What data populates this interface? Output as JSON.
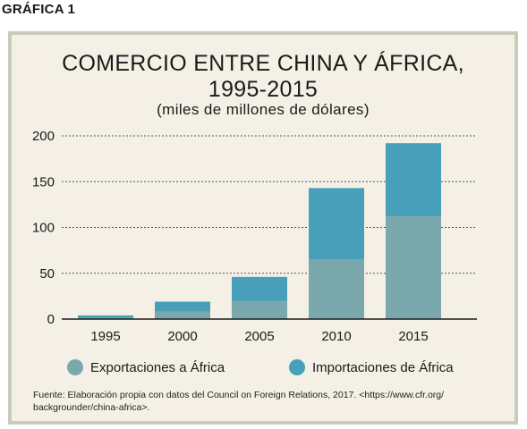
{
  "figure_label": "GRÁFICA 1",
  "source_line1": "Fuente: Elaboración propia con datos del Council on Foreign Relations, 2017. <https://www.cfr.org/",
  "source_line2": "backgrounder/china-africa>.",
  "colors": {
    "panel_bg": "#f4f0e6",
    "panel_border": "#c9ccb8",
    "exports": "#7ba8ad",
    "imports": "#479fba"
  },
  "chart_data": {
    "type": "bar",
    "stacked": true,
    "title_line1": "COMERCIO ENTRE CHINA Y ÁFRICA,",
    "title_line2": "1995-2015",
    "subtitle": "(miles de millones de dólares)",
    "xlabel": "",
    "ylabel": "",
    "categories": [
      "1995",
      "2000",
      "2005",
      "2010",
      "2015"
    ],
    "series": [
      {
        "name": "Exportaciones a África",
        "color": "#7ba8ad",
        "values": [
          1.5,
          8,
          20,
          65,
          112
        ]
      },
      {
        "name": "Importaciones de África",
        "color": "#479fba",
        "values": [
          2.5,
          11,
          26,
          78,
          80
        ]
      }
    ],
    "ylim": [
      0,
      200
    ],
    "yticks": [
      "0",
      "50",
      "100",
      "150",
      "200"
    ],
    "grid": true,
    "legend_position": "bottom"
  }
}
